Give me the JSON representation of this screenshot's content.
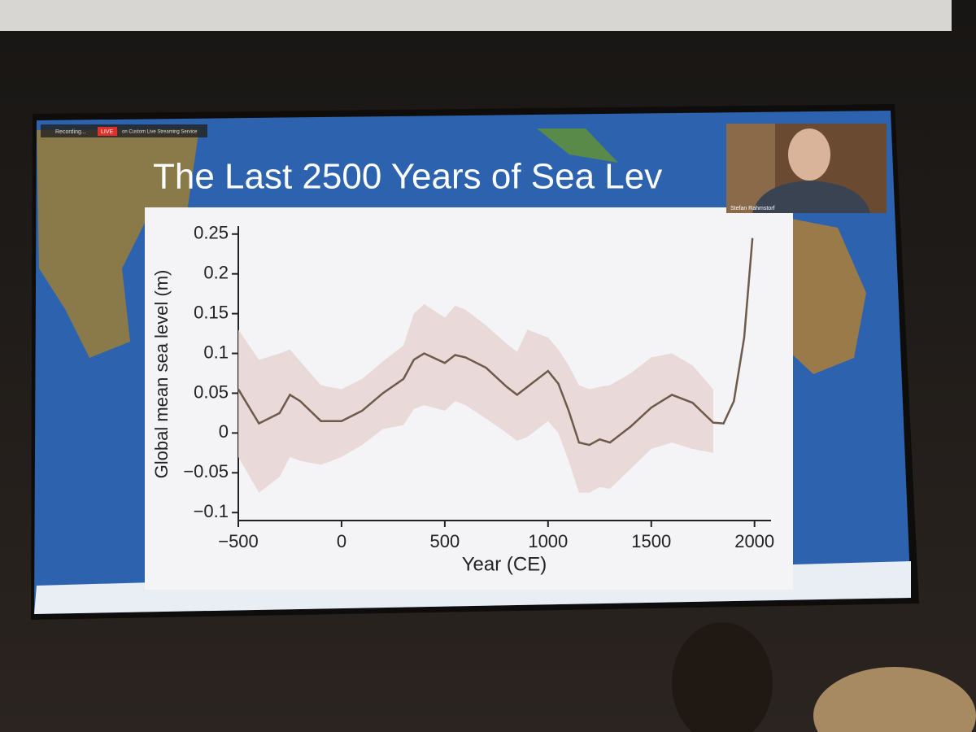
{
  "chart_data": {
    "type": "line",
    "title": "The Last 2500 Years of Sea Lev",
    "y_label": "Global mean sea level (m)",
    "x_label": "Year (CE)",
    "x": [
      -500,
      -400,
      -300,
      -250,
      -200,
      -100,
      0,
      100,
      200,
      300,
      350,
      400,
      500,
      550,
      600,
      700,
      800,
      850,
      900,
      1000,
      1050,
      1100,
      1150,
      1200,
      1250,
      1300,
      1400,
      1500,
      1600,
      1700,
      1800,
      1850,
      1900,
      1950,
      1990
    ],
    "values": [
      0.055,
      0.012,
      0.025,
      0.048,
      0.04,
      0.015,
      0.015,
      0.028,
      0.05,
      0.068,
      0.092,
      0.1,
      0.088,
      0.098,
      0.095,
      0.082,
      0.058,
      0.048,
      0.058,
      0.078,
      0.062,
      0.028,
      -0.012,
      -0.015,
      -0.008,
      -0.012,
      0.008,
      0.032,
      0.048,
      0.038,
      0.013,
      0.012,
      0.04,
      0.12,
      0.245
    ],
    "band": {
      "upper": [
        0.13,
        0.092,
        0.1,
        0.105,
        0.09,
        0.06,
        0.055,
        0.068,
        0.09,
        0.11,
        0.15,
        0.162,
        0.145,
        0.16,
        0.155,
        0.135,
        0.112,
        0.102,
        0.13,
        0.12,
        0.105,
        0.085,
        0.06,
        0.055,
        0.058,
        0.06,
        0.075,
        0.095,
        0.1,
        0.085,
        0.055,
        null,
        null,
        null,
        null
      ],
      "lower": [
        -0.03,
        -0.075,
        -0.055,
        -0.03,
        -0.035,
        -0.04,
        -0.03,
        -0.015,
        0.005,
        0.01,
        0.03,
        0.035,
        0.028,
        0.04,
        0.035,
        0.018,
        0.0,
        -0.01,
        -0.005,
        0.015,
        0.0,
        -0.035,
        -0.075,
        -0.075,
        -0.068,
        -0.07,
        -0.045,
        -0.02,
        -0.012,
        -0.02,
        -0.025,
        null,
        null,
        null,
        null
      ]
    },
    "color": "#6e5a4c",
    "band_color": "#e6d4d2",
    "xlim": [
      -500,
      2080
    ],
    "ylim": [
      -0.11,
      0.26
    ],
    "xticks": [
      {
        "value": -500,
        "label": "−500"
      },
      0,
      500,
      1000,
      1500,
      2000
    ],
    "yticks": [
      {
        "value": -0.1,
        "label": "−0.1"
      },
      {
        "value": -0.05,
        "label": "−0.05"
      },
      0,
      0.05,
      0.1,
      0.15,
      0.2,
      0.25
    ]
  },
  "overlay": {
    "recording": "Recording...",
    "live": "LIVE",
    "stream": "on Custom Live Streaming Service",
    "speaker": "Stefan Rahmstorf"
  }
}
